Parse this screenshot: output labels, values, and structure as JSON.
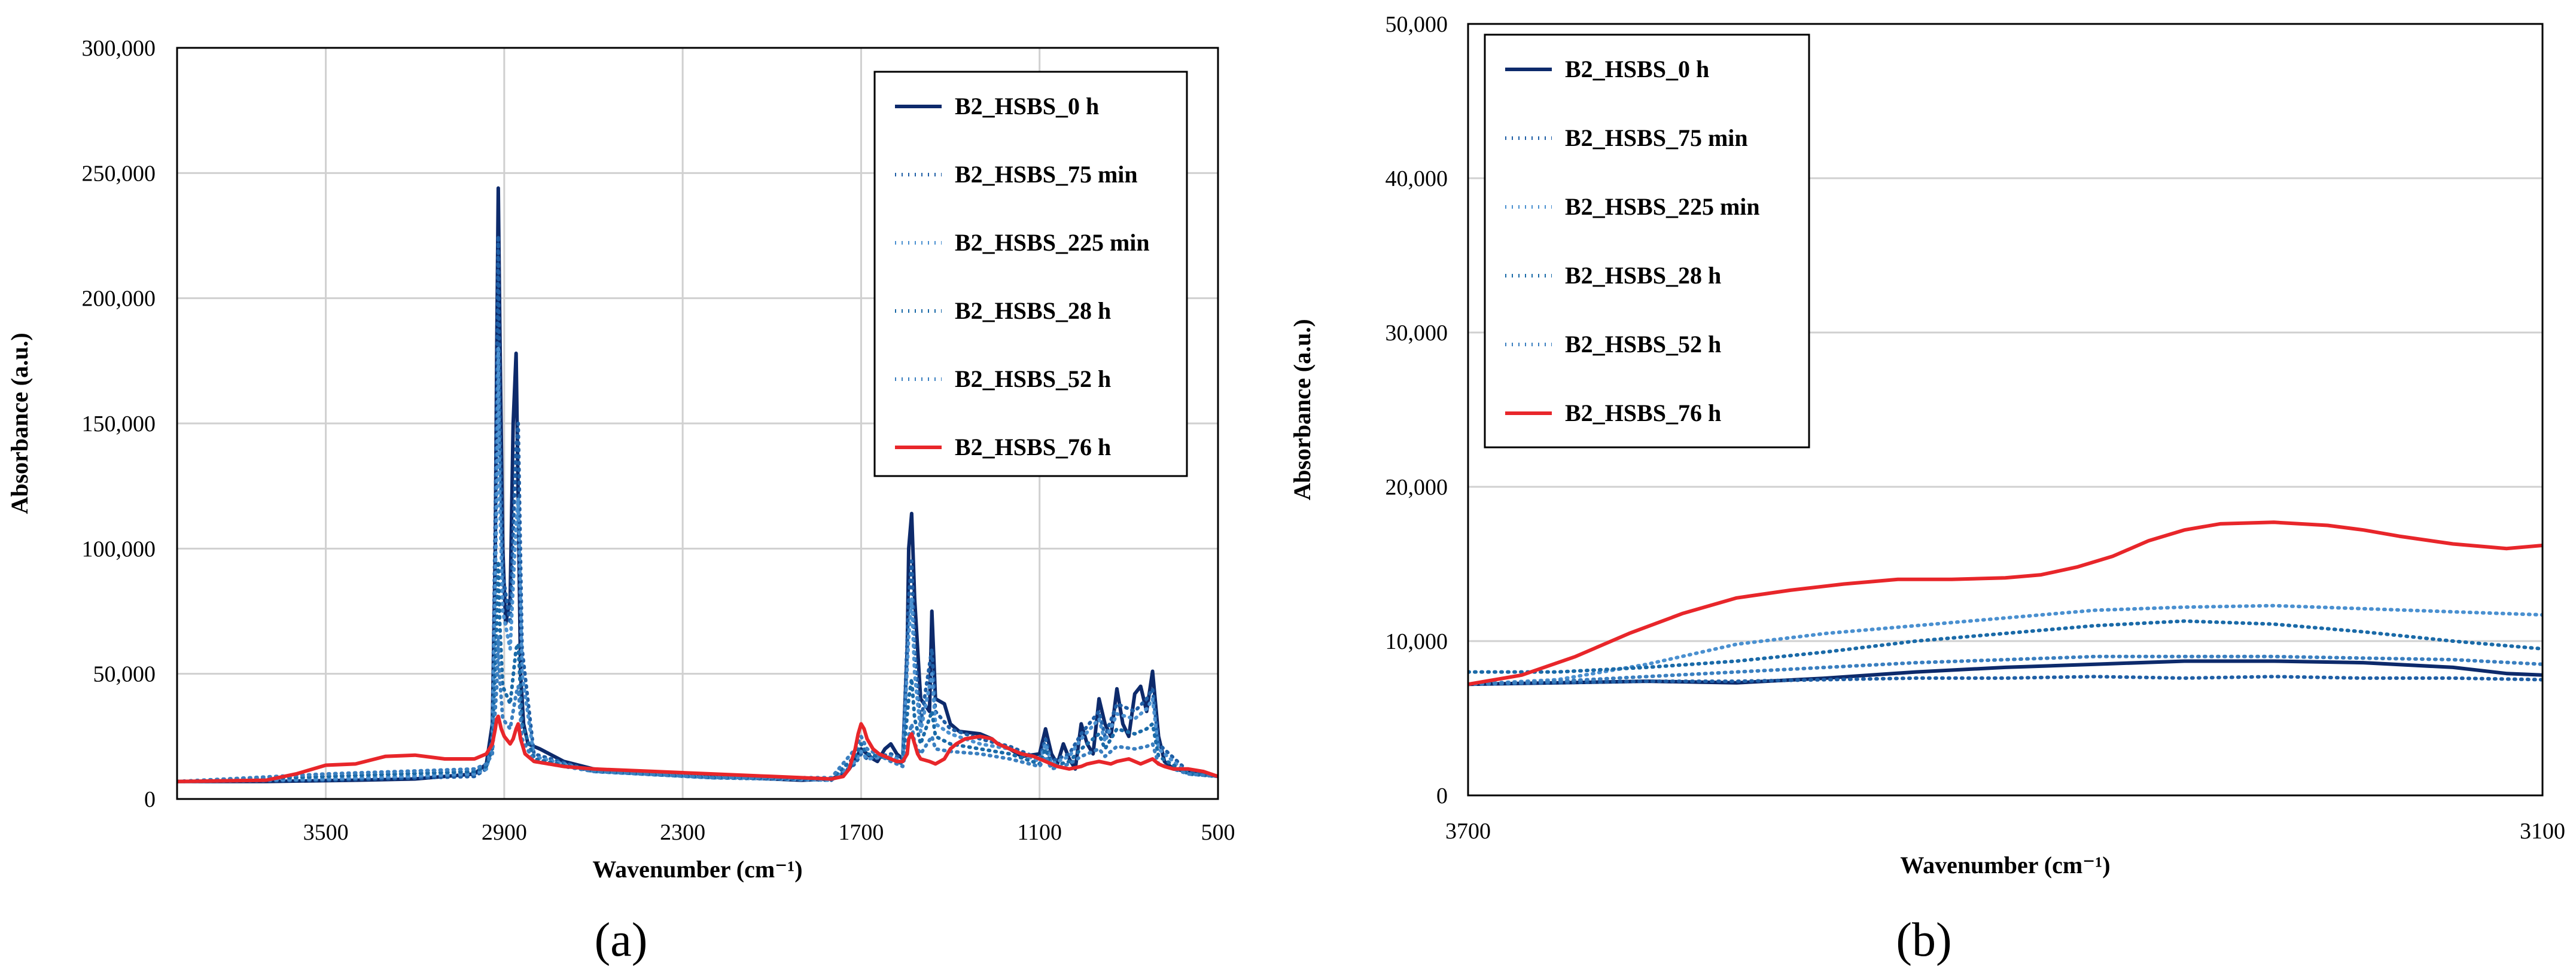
{
  "chart_data": [
    {
      "type": "line",
      "panel_label": "(a)",
      "xlabel": "Wavenumber (cm⁻¹)",
      "ylabel": "Absorbance (a.u.)",
      "xlim": [
        4000,
        500
      ],
      "ylim": [
        0,
        300000
      ],
      "x_ticks": [
        3500,
        2900,
        2300,
        1700,
        1100,
        500
      ],
      "x_tick_labels": [
        "3500",
        "2900",
        "2300",
        "1700",
        "1100",
        "500"
      ],
      "y_ticks": [
        0,
        50000,
        100000,
        150000,
        200000,
        250000,
        300000
      ],
      "y_tick_labels": [
        "0",
        "50,000",
        "100,000",
        "150,000",
        "200,000",
        "250,000",
        "300,000"
      ],
      "grid": true,
      "legend_position": "top-right",
      "series": [
        {
          "name": "B2_HSBS_0 h",
          "color": "#0d2a6b",
          "style": "solid",
          "x": [
            4000,
            3700,
            3400,
            3200,
            3000,
            2960,
            2940,
            2930,
            2925,
            2920,
            2915,
            2905,
            2895,
            2880,
            2870,
            2860,
            2853,
            2845,
            2835,
            2820,
            2780,
            2700,
            2600,
            2400,
            2200,
            2000,
            1900,
            1800,
            1760,
            1740,
            1720,
            1700,
            1680,
            1660,
            1645,
            1620,
            1600,
            1580,
            1560,
            1545,
            1540,
            1530,
            1520,
            1500,
            1470,
            1462,
            1450,
            1420,
            1400,
            1370,
            1300,
            1260,
            1240,
            1200,
            1160,
            1100,
            1080,
            1060,
            1040,
            1020,
            1000,
            980,
            960,
            940,
            920,
            900,
            880,
            860,
            840,
            820,
            800,
            780,
            760,
            740,
            720,
            700,
            680,
            650,
            600,
            550,
            500
          ],
          "y": [
            7000,
            7000,
            7500,
            8000,
            10000,
            14000,
            30000,
            100000,
            180000,
            244000,
            190000,
            100000,
            70000,
            80000,
            150000,
            178000,
            120000,
            50000,
            30000,
            22000,
            20000,
            15000,
            12000,
            10000,
            9000,
            8000,
            7500,
            8000,
            10000,
            12000,
            16000,
            20000,
            18000,
            16000,
            15000,
            20000,
            22000,
            18000,
            16000,
            60000,
            100000,
            114000,
            80000,
            40000,
            35000,
            75000,
            40000,
            38000,
            30000,
            27000,
            26000,
            24000,
            22000,
            20000,
            17000,
            18000,
            28000,
            18000,
            14000,
            22000,
            16000,
            12000,
            30000,
            22000,
            18000,
            40000,
            30000,
            25000,
            44000,
            30000,
            25000,
            42000,
            45000,
            35000,
            51000,
            25000,
            15000,
            12000,
            11000,
            10000,
            9000
          ]
        },
        {
          "name": "B2_HSBS_75 min",
          "color": "#1f5fa6",
          "style": "dotted",
          "x": [
            4000,
            3500,
            3000,
            2960,
            2940,
            2925,
            2920,
            2915,
            2905,
            2880,
            2860,
            2853,
            2840,
            2800,
            2600,
            2200,
            1800,
            1720,
            1700,
            1680,
            1600,
            1560,
            1540,
            1530,
            1520,
            1500,
            1462,
            1450,
            1400,
            1300,
            1200,
            1100,
            1080,
            1060,
            1000,
            960,
            900,
            880,
            840,
            780,
            740,
            720,
            700,
            600,
            500
          ],
          "y": [
            7000,
            7500,
            9000,
            12000,
            25000,
            160000,
            225000,
            150000,
            90000,
            70000,
            140000,
            150000,
            60000,
            18000,
            11000,
            8500,
            7500,
            14000,
            18000,
            16000,
            18000,
            16000,
            80000,
            95000,
            60000,
            30000,
            60000,
            35000,
            28000,
            24000,
            21000,
            16000,
            24000,
            15000,
            18000,
            26000,
            35000,
            25000,
            38000,
            35000,
            40000,
            44000,
            22000,
            11000,
            9000
          ]
        },
        {
          "name": "B2_HSBS_225 min",
          "color": "#4a90d0",
          "style": "dotted",
          "x": [
            4000,
            3500,
            3000,
            2960,
            2940,
            2925,
            2920,
            2915,
            2905,
            2880,
            2860,
            2853,
            2840,
            2800,
            2600,
            2200,
            1800,
            1720,
            1700,
            1680,
            1600,
            1560,
            1540,
            1530,
            1520,
            1500,
            1462,
            1450,
            1400,
            1300,
            1200,
            1100,
            1080,
            1060,
            1000,
            960,
            900,
            880,
            840,
            780,
            740,
            720,
            700,
            600,
            500
          ],
          "y": [
            7000,
            8000,
            10000,
            12000,
            22000,
            120000,
            180000,
            120000,
            75000,
            60000,
            110000,
            120000,
            50000,
            17000,
            11000,
            8500,
            7500,
            15000,
            19000,
            16000,
            17000,
            15000,
            65000,
            80000,
            50000,
            27000,
            50000,
            30000,
            26000,
            22000,
            20000,
            15000,
            22000,
            14000,
            17000,
            24000,
            32000,
            23000,
            34000,
            32000,
            36000,
            40000,
            20000,
            10000,
            9000
          ]
        },
        {
          "name": "B2_HSBS_28 h",
          "color": "#1a6aa8",
          "style": "dotted",
          "x": [
            4000,
            3500,
            3000,
            2960,
            2940,
            2925,
            2920,
            2915,
            2905,
            2880,
            2860,
            2853,
            2840,
            2800,
            2600,
            2200,
            1800,
            1720,
            1700,
            1680,
            1600,
            1560,
            1540,
            1530,
            1520,
            1500,
            1462,
            1450,
            1400,
            1300,
            1200,
            1100,
            1080,
            1060,
            1000,
            960,
            900,
            880,
            840,
            780,
            740,
            720,
            700,
            600,
            500
          ],
          "y": [
            7000,
            9000,
            11000,
            13000,
            20000,
            70000,
            95000,
            70000,
            45000,
            38000,
            60000,
            62000,
            30000,
            16000,
            11000,
            8500,
            8000,
            17000,
            22000,
            18000,
            16000,
            14000,
            40000,
            48000,
            32000,
            22000,
            35000,
            25000,
            22000,
            20000,
            18000,
            14000,
            20000,
            13000,
            15000,
            20000,
            26000,
            20000,
            28000,
            26000,
            28000,
            30000,
            17000,
            10000,
            9000
          ]
        },
        {
          "name": "B2_HSBS_52 h",
          "color": "#3a7fc0",
          "style": "dotted",
          "x": [
            4000,
            3500,
            3000,
            2960,
            2940,
            2925,
            2920,
            2915,
            2905,
            2880,
            2860,
            2853,
            2840,
            2800,
            2600,
            2200,
            1800,
            1720,
            1700,
            1680,
            1600,
            1560,
            1540,
            1530,
            1520,
            1500,
            1462,
            1450,
            1400,
            1300,
            1200,
            1100,
            1080,
            1060,
            1000,
            960,
            900,
            880,
            840,
            780,
            740,
            720,
            700,
            600,
            500
          ],
          "y": [
            7000,
            10000,
            12000,
            14000,
            18000,
            45000,
            65000,
            48000,
            32000,
            28000,
            42000,
            45000,
            24000,
            15000,
            11000,
            8500,
            8500,
            20000,
            25000,
            20000,
            15000,
            13000,
            25000,
            30000,
            22000,
            18000,
            25000,
            20000,
            19000,
            18000,
            16000,
            13000,
            17000,
            12000,
            14000,
            17000,
            20000,
            17000,
            21000,
            20000,
            21000,
            22000,
            14000,
            10000,
            9000
          ]
        },
        {
          "name": "B2_HSBS_76 h",
          "color": "#e8262a",
          "style": "solid",
          "x": [
            4000,
            3700,
            3600,
            3500,
            3400,
            3300,
            3200,
            3100,
            3000,
            2960,
            2940,
            2930,
            2925,
            2920,
            2910,
            2900,
            2880,
            2870,
            2860,
            2853,
            2845,
            2830,
            2800,
            2700,
            2600,
            2400,
            2200,
            2000,
            1900,
            1800,
            1760,
            1740,
            1720,
            1710,
            1700,
            1690,
            1680,
            1660,
            1640,
            1620,
            1600,
            1580,
            1560,
            1545,
            1540,
            1530,
            1520,
            1510,
            1500,
            1470,
            1450,
            1420,
            1400,
            1380,
            1350,
            1300,
            1260,
            1240,
            1200,
            1160,
            1120,
            1100,
            1080,
            1060,
            1040,
            1000,
            960,
            940,
            900,
            860,
            840,
            800,
            760,
            740,
            720,
            700,
            680,
            650,
            600,
            550,
            500
          ],
          "y": [
            7000,
            7500,
            10000,
            13500,
            14000,
            17000,
            17500,
            16000,
            16000,
            18000,
            22000,
            28000,
            32000,
            33000,
            28000,
            25000,
            22000,
            24000,
            28000,
            30000,
            24000,
            18000,
            15000,
            13000,
            12000,
            11000,
            10000,
            9000,
            8500,
            8000,
            9000,
            12000,
            20000,
            26000,
            30000,
            28000,
            24000,
            20000,
            18000,
            17000,
            16000,
            15000,
            15000,
            18000,
            24000,
            26000,
            22000,
            18000,
            16000,
            15000,
            14000,
            16000,
            20000,
            22000,
            24000,
            25000,
            24000,
            22000,
            20000,
            18000,
            17000,
            16000,
            15000,
            14000,
            13000,
            12000,
            13000,
            14000,
            15000,
            14000,
            15000,
            16000,
            14000,
            15000,
            16000,
            14000,
            13000,
            12000,
            12000,
            11000,
            9000
          ]
        }
      ]
    },
    {
      "type": "line",
      "panel_label": "(b)",
      "xlabel": "Wavenumber (cm⁻¹)",
      "ylabel": "Absorbance (a.u.)",
      "xlim": [
        3700,
        3100
      ],
      "ylim": [
        0,
        50000
      ],
      "x_ticks": [
        3700,
        3100
      ],
      "x_tick_labels": [
        "3700",
        "3100"
      ],
      "y_ticks": [
        0,
        10000,
        20000,
        30000,
        40000,
        50000
      ],
      "y_tick_labels": [
        "0",
        "10,000",
        "20,000",
        "30,000",
        "40,000",
        "50,000"
      ],
      "grid": true,
      "legend_position": "top-left",
      "series": [
        {
          "name": "B2_HSBS_0 h",
          "color": "#0d2a6b",
          "style": "solid",
          "x": [
            3700,
            3650,
            3600,
            3550,
            3500,
            3450,
            3400,
            3350,
            3300,
            3250,
            3200,
            3150,
            3120,
            3100
          ],
          "y": [
            7200,
            7300,
            7400,
            7300,
            7600,
            8000,
            8300,
            8500,
            8700,
            8700,
            8600,
            8300,
            7900,
            7800
          ]
        },
        {
          "name": "B2_HSBS_75 min",
          "color": "#1f5fa6",
          "style": "dotted",
          "x": [
            3700,
            3650,
            3600,
            3550,
            3500,
            3450,
            3400,
            3350,
            3300,
            3250,
            3200,
            3150,
            3100
          ],
          "y": [
            7200,
            7300,
            7400,
            7400,
            7500,
            7600,
            7600,
            7700,
            7600,
            7700,
            7600,
            7600,
            7500
          ]
        },
        {
          "name": "B2_HSBS_225 min",
          "color": "#4a90d0",
          "style": "dotted",
          "x": [
            3700,
            3650,
            3600,
            3550,
            3500,
            3450,
            3400,
            3350,
            3300,
            3250,
            3200,
            3150,
            3100
          ],
          "y": [
            7200,
            7500,
            8500,
            9800,
            10500,
            11000,
            11500,
            12000,
            12200,
            12300,
            12100,
            11900,
            11700
          ]
        },
        {
          "name": "B2_HSBS_28 h",
          "color": "#1a6aa8",
          "style": "dotted",
          "x": [
            3700,
            3650,
            3600,
            3550,
            3500,
            3450,
            3400,
            3350,
            3300,
            3250,
            3200,
            3150,
            3100
          ],
          "y": [
            8000,
            8000,
            8300,
            8700,
            9300,
            10000,
            10500,
            11000,
            11300,
            11100,
            10600,
            10000,
            9500
          ]
        },
        {
          "name": "B2_HSBS_52 h",
          "color": "#3a7fc0",
          "style": "dotted",
          "x": [
            3700,
            3650,
            3600,
            3550,
            3500,
            3450,
            3400,
            3350,
            3300,
            3250,
            3200,
            3150,
            3100
          ],
          "y": [
            7200,
            7400,
            7700,
            8000,
            8300,
            8600,
            8800,
            9000,
            9000,
            9000,
            8900,
            8800,
            8500
          ]
        },
        {
          "name": "B2_HSBS_76 h",
          "color": "#e8262a",
          "style": "solid",
          "x": [
            3700,
            3670,
            3640,
            3610,
            3580,
            3550,
            3520,
            3490,
            3460,
            3430,
            3400,
            3380,
            3360,
            3340,
            3320,
            3300,
            3280,
            3250,
            3220,
            3200,
            3180,
            3150,
            3120,
            3100
          ],
          "y": [
            7200,
            7800,
            9000,
            10500,
            11800,
            12800,
            13300,
            13700,
            14000,
            14000,
            14100,
            14300,
            14800,
            15500,
            16500,
            17200,
            17600,
            17700,
            17500,
            17200,
            16800,
            16300,
            16000,
            16200
          ]
        }
      ]
    }
  ]
}
